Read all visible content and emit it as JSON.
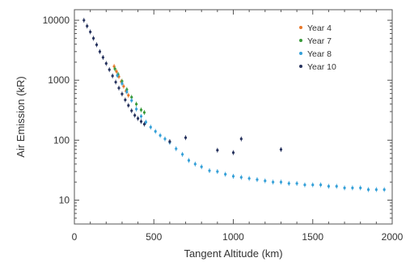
{
  "chart_data": {
    "type": "scatter",
    "xlabel": "Tangent Altitude (km)",
    "ylabel": "Air Emission (kR)",
    "xlim": [
      0,
      2000
    ],
    "ylim": [
      4,
      15000
    ],
    "yscale": "log",
    "xticks": [
      0,
      500,
      1000,
      1500,
      2000
    ],
    "xtick_labels": [
      "0",
      "500",
      "1000",
      "1500",
      "2000"
    ],
    "yticks": [
      10,
      100,
      1000,
      10000
    ],
    "ytick_labels": [
      "10",
      "100",
      "1000",
      "10000"
    ],
    "legend_position": "top-right",
    "grid": false,
    "series": [
      {
        "name": "Year 4",
        "color": "#e8782a",
        "x": [
          250,
          265,
          280,
          295,
          310,
          325,
          340
        ],
        "y": [
          1700,
          1400,
          1150,
          950,
          790,
          660,
          560
        ]
      },
      {
        "name": "Year 7",
        "color": "#3a9a3a",
        "x": [
          255,
          275,
          300,
          330,
          360,
          390,
          420,
          440
        ],
        "y": [
          1550,
          1250,
          960,
          700,
          520,
          400,
          320,
          290
        ]
      },
      {
        "name": "Year 8",
        "color": "#35a0d8",
        "x": [
          270,
          300,
          330,
          360,
          390,
          420,
          450,
          480,
          510,
          540,
          570,
          600,
          640,
          680,
          720,
          760,
          800,
          850,
          900,
          950,
          1000,
          1050,
          1100,
          1150,
          1200,
          1250,
          1300,
          1350,
          1400,
          1450,
          1500,
          1550,
          1600,
          1650,
          1700,
          1750,
          1800,
          1850,
          1900,
          1950
        ],
        "y": [
          1200,
          880,
          640,
          460,
          330,
          250,
          200,
          165,
          140,
          120,
          105,
          92,
          72,
          58,
          46,
          40,
          36,
          31,
          30,
          27,
          25,
          24,
          23,
          22,
          21,
          20,
          20,
          19,
          19,
          18,
          18,
          18,
          17,
          17,
          16,
          16,
          16,
          15,
          15,
          15
        ]
      },
      {
        "name": "Year 10",
        "color": "#27335e",
        "x": [
          60,
          80,
          100,
          120,
          140,
          160,
          180,
          200,
          220,
          240,
          260,
          280,
          300,
          320,
          340,
          360,
          380,
          400,
          420,
          440,
          600,
          700,
          900,
          1000,
          1050,
          1300
        ],
        "y": [
          10000,
          8000,
          6400,
          5000,
          3900,
          3000,
          2400,
          1900,
          1500,
          1180,
          930,
          740,
          590,
          470,
          380,
          310,
          260,
          230,
          205,
          185,
          95,
          110,
          68,
          62,
          105,
          70
        ]
      }
    ]
  }
}
